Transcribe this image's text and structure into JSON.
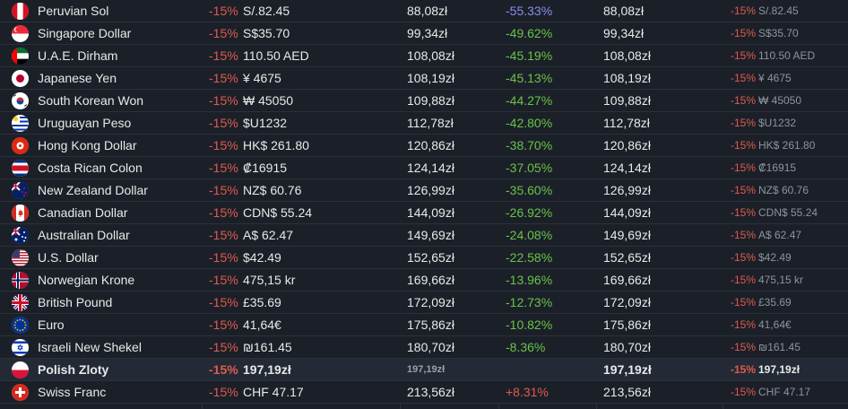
{
  "rows": [
    {
      "flag": "peru",
      "name": "Peruvian Sol",
      "discount": "-15%",
      "price": "S/.82.45",
      "converted": "88,08zł",
      "diff": "-55.33%",
      "diff_style": "blue",
      "converted2": "88,08zł",
      "discount2": "-15%",
      "price2": "S/.82.45"
    },
    {
      "flag": "singapore",
      "name": "Singapore Dollar",
      "discount": "-15%",
      "price": "S$35.70",
      "converted": "99,34zł",
      "diff": "-49.62%",
      "diff_style": "neg",
      "converted2": "99,34zł",
      "discount2": "-15%",
      "price2": "S$35.70"
    },
    {
      "flag": "uae",
      "name": "U.A.E. Dirham",
      "discount": "-15%",
      "price": "110.50 AED",
      "converted": "108,08zł",
      "diff": "-45.19%",
      "diff_style": "neg",
      "converted2": "108,08zł",
      "discount2": "-15%",
      "price2": "110.50 AED"
    },
    {
      "flag": "japan",
      "name": "Japanese Yen",
      "discount": "-15%",
      "price": "¥ 4675",
      "converted": "108,19zł",
      "diff": "-45.13%",
      "diff_style": "neg",
      "converted2": "108,19zł",
      "discount2": "-15%",
      "price2": "¥ 4675"
    },
    {
      "flag": "korea",
      "name": "South Korean Won",
      "discount": "-15%",
      "price": "₩ 45050",
      "converted": "109,88zł",
      "diff": "-44.27%",
      "diff_style": "neg",
      "converted2": "109,88zł",
      "discount2": "-15%",
      "price2": "₩ 45050"
    },
    {
      "flag": "uruguay",
      "name": "Uruguayan Peso",
      "discount": "-15%",
      "price": "$U1232",
      "converted": "112,78zł",
      "diff": "-42.80%",
      "diff_style": "neg",
      "converted2": "112,78zł",
      "discount2": "-15%",
      "price2": "$U1232"
    },
    {
      "flag": "hongkong",
      "name": "Hong Kong Dollar",
      "discount": "-15%",
      "price": "HK$ 261.80",
      "converted": "120,86zł",
      "diff": "-38.70%",
      "diff_style": "neg",
      "converted2": "120,86zł",
      "discount2": "-15%",
      "price2": "HK$ 261.80"
    },
    {
      "flag": "costarica",
      "name": "Costa Rican Colon",
      "discount": "-15%",
      "price": "₡16915",
      "converted": "124,14zł",
      "diff": "-37.05%",
      "diff_style": "neg",
      "converted2": "124,14zł",
      "discount2": "-15%",
      "price2": "₡16915"
    },
    {
      "flag": "newzealand",
      "name": "New Zealand Dollar",
      "discount": "-15%",
      "price": "NZ$ 60.76",
      "converted": "126,99zł",
      "diff": "-35.60%",
      "diff_style": "neg",
      "converted2": "126,99zł",
      "discount2": "-15%",
      "price2": "NZ$ 60.76"
    },
    {
      "flag": "canada",
      "name": "Canadian Dollar",
      "discount": "-15%",
      "price": "CDN$ 55.24",
      "converted": "144,09zł",
      "diff": "-26.92%",
      "diff_style": "neg",
      "converted2": "144,09zł",
      "discount2": "-15%",
      "price2": "CDN$ 55.24"
    },
    {
      "flag": "australia",
      "name": "Australian Dollar",
      "discount": "-15%",
      "price": "A$ 62.47",
      "converted": "149,69zł",
      "diff": "-24.08%",
      "diff_style": "neg",
      "converted2": "149,69zł",
      "discount2": "-15%",
      "price2": "A$ 62.47"
    },
    {
      "flag": "usa",
      "name": "U.S. Dollar",
      "discount": "-15%",
      "price": "$42.49",
      "converted": "152,65zł",
      "diff": "-22.58%",
      "diff_style": "neg",
      "converted2": "152,65zł",
      "discount2": "-15%",
      "price2": "$42.49"
    },
    {
      "flag": "norway",
      "name": "Norwegian Krone",
      "discount": "-15%",
      "price": "475,15 kr",
      "converted": "169,66zł",
      "diff": "-13.96%",
      "diff_style": "neg",
      "converted2": "169,66zł",
      "discount2": "-15%",
      "price2": "475,15 kr"
    },
    {
      "flag": "uk",
      "name": "British Pound",
      "discount": "-15%",
      "price": "£35.69",
      "converted": "172,09zł",
      "diff": "-12.73%",
      "diff_style": "neg",
      "converted2": "172,09zł",
      "discount2": "-15%",
      "price2": "£35.69"
    },
    {
      "flag": "euro",
      "name": "Euro",
      "discount": "-15%",
      "price": "41,64€",
      "converted": "175,86zł",
      "diff": "-10.82%",
      "diff_style": "neg",
      "converted2": "175,86zł",
      "discount2": "-15%",
      "price2": "41,64€"
    },
    {
      "flag": "israel",
      "name": "Israeli New Shekel",
      "discount": "-15%",
      "price": "₪161.45",
      "converted": "180,70zł",
      "diff": "-8.36%",
      "diff_style": "neg",
      "converted2": "180,70zł",
      "discount2": "-15%",
      "price2": "₪161.45"
    },
    {
      "flag": "poland",
      "name": "Polish Zloty",
      "discount": "-15%",
      "price": "197,19zł",
      "converted": "197,19zł",
      "diff": "",
      "diff_style": "neg",
      "converted2": "197,19zł",
      "discount2": "-15%",
      "price2": "197,19zł",
      "highlight": true
    },
    {
      "flag": "swiss",
      "name": "Swiss Franc",
      "discount": "-15%",
      "price": "CHF 47.17",
      "converted": "213,56zł",
      "diff": "+8.31%",
      "diff_style": "pos",
      "converted2": "213,56zł",
      "discount2": "-15%",
      "price2": "CHF 47.17"
    }
  ]
}
